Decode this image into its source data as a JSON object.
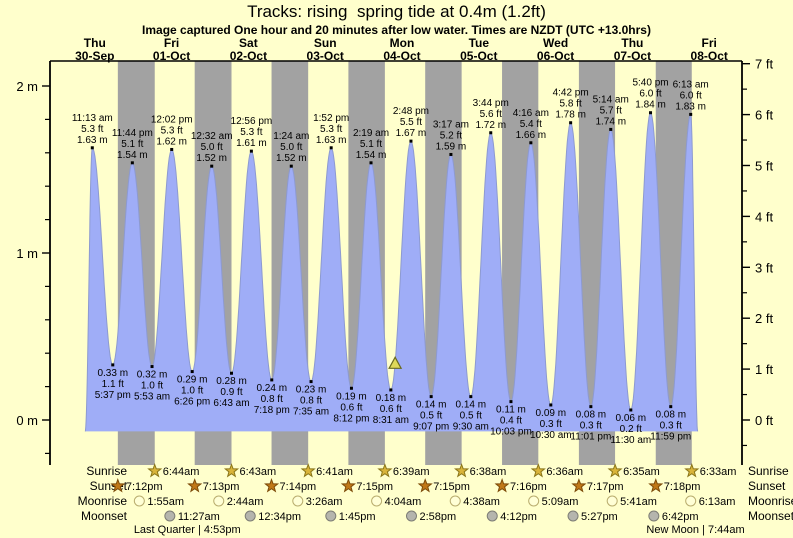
{
  "title": "Tracks: rising  spring tide at 0.4m (1.2ft)",
  "subtitle": "Image captured One hour and 20 minutes after low water. Times are NZDT (UTC +13.0hrs)",
  "row_labels": {
    "sunrise": "Sunrise",
    "sunset": "Sunset",
    "moonrise": "Moonrise",
    "moonset": "Moonset"
  },
  "colors": {
    "background": "#ffffcc",
    "night_band": "#a2a2a2",
    "tide_fill": "#9fadf7",
    "tide_edge": "#8d9ad0",
    "day_label": "#e60000",
    "text": "#000000",
    "sunrise_star": "#d9b43a",
    "sunrise_star_edge": "#8a7518",
    "sunset_star": "#c07817",
    "sunset_star_edge": "#7c4a08",
    "moonrise_circle": "#ffffd6",
    "moonrise_circle_edge": "#b9ad6e",
    "moonset_circle": "#b5b5ad",
    "moonset_circle_edge": "#7d7d75",
    "marker_fill": "#ded85a",
    "marker_edge": "#6a6a20"
  },
  "chart_data": {
    "type": "area",
    "title": "Tracks: rising  spring tide at 0.4m (1.2ft)",
    "ylabel_left_unit": "m",
    "ylabel_right_unit": "ft",
    "left_axis_ticks": [
      "0 m",
      "1 m",
      "2 m"
    ],
    "right_axis_ticks": [
      "0 ft",
      "1 ft",
      "2 ft",
      "3 ft",
      "4 ft",
      "5 ft",
      "6 ft",
      "7 ft"
    ],
    "ylim_m": [
      -0.27,
      2.17
    ],
    "grid": false,
    "legend": "none",
    "days": [
      {
        "weekday": "Thu",
        "date": "30-Sep"
      },
      {
        "weekday": "Fri",
        "date": "01-Oct"
      },
      {
        "weekday": "Sat",
        "date": "02-Oct"
      },
      {
        "weekday": "Sun",
        "date": "03-Oct"
      },
      {
        "weekday": "Mon",
        "date": "04-Oct"
      },
      {
        "weekday": "Tue",
        "date": "05-Oct"
      },
      {
        "weekday": "Wed",
        "date": "06-Oct"
      },
      {
        "weekday": "Thu",
        "date": "07-Oct"
      },
      {
        "weekday": "Fri",
        "date": "08-Oct"
      }
    ],
    "high_tides": [
      {
        "day": 0,
        "time": "11:13 am",
        "ft": "5.3 ft",
        "m": "1.63 m"
      },
      {
        "day": 0,
        "time": "11:44 pm",
        "ft": "5.1 ft",
        "m": "1.54 m"
      },
      {
        "day": 1,
        "time": "12:02 pm",
        "ft": "5.3 ft",
        "m": "1.62 m"
      },
      {
        "day": 2,
        "time": "12:32 am",
        "ft": "5.0 ft",
        "m": "1.52 m"
      },
      {
        "day": 2,
        "time": "12:56 pm",
        "ft": "5.3 ft",
        "m": "1.61 m"
      },
      {
        "day": 3,
        "time": "1:24 am",
        "ft": "5.0 ft",
        "m": "1.52 m"
      },
      {
        "day": 3,
        "time": "1:52 pm",
        "ft": "5.3 ft",
        "m": "1.63 m"
      },
      {
        "day": 4,
        "time": "2:19 am",
        "ft": "5.1 ft",
        "m": "1.54 m"
      },
      {
        "day": 4,
        "time": "2:48 pm",
        "ft": "5.5 ft",
        "m": "1.67 m"
      },
      {
        "day": 5,
        "time": "3:17 am",
        "ft": "5.2 ft",
        "m": "1.59 m"
      },
      {
        "day": 5,
        "time": "3:44 pm",
        "ft": "5.6 ft",
        "m": "1.72 m"
      },
      {
        "day": 6,
        "time": "4:16 am",
        "ft": "5.4 ft",
        "m": "1.66 m"
      },
      {
        "day": 6,
        "time": "4:42 pm",
        "ft": "5.8 ft",
        "m": "1.78 m"
      },
      {
        "day": 7,
        "time": "5:14 am",
        "ft": "5.7 ft",
        "m": "1.74 m"
      },
      {
        "day": 7,
        "time": "5:40 pm",
        "ft": "6.0 ft",
        "m": "1.84 m"
      },
      {
        "day": 8,
        "time": "6:13 am",
        "ft": "6.0 ft",
        "m": "1.83 m"
      }
    ],
    "low_tides": [
      {
        "day": 0,
        "m": "0.33 m",
        "ft": "1.1 ft",
        "time": "5:37 pm"
      },
      {
        "day": 1,
        "m": "0.32 m",
        "ft": "1.0 ft",
        "time": "5:53 am"
      },
      {
        "day": 1,
        "m": "0.29 m",
        "ft": "1.0 ft",
        "time": "6:26 pm"
      },
      {
        "day": 2,
        "m": "0.28 m",
        "ft": "0.9 ft",
        "time": "6:43 am"
      },
      {
        "day": 2,
        "m": "0.24 m",
        "ft": "0.8 ft",
        "time": "7:18 pm"
      },
      {
        "day": 3,
        "m": "0.23 m",
        "ft": "0.8 ft",
        "time": "7:35 am"
      },
      {
        "day": 3,
        "m": "0.19 m",
        "ft": "0.6 ft",
        "time": "8:12 pm"
      },
      {
        "day": 4,
        "m": "0.18 m",
        "ft": "0.6 ft",
        "time": "8:31 am"
      },
      {
        "day": 4,
        "m": "0.14 m",
        "ft": "0.5 ft",
        "time": "9:07 pm"
      },
      {
        "day": 5,
        "m": "0.14 m",
        "ft": "0.5 ft",
        "time": "9:30 am"
      },
      {
        "day": 5,
        "m": "0.11 m",
        "ft": "0.4 ft",
        "time": "10:03 pm"
      },
      {
        "day": 6,
        "m": "0.09 m",
        "ft": "0.3 ft",
        "time": "10:30 am"
      },
      {
        "day": 6,
        "m": "0.08 m",
        "ft": "0.3 ft",
        "time": "11:01 pm"
      },
      {
        "day": 7,
        "m": "0.06 m",
        "ft": "0.2 ft",
        "time": "11:30 am"
      },
      {
        "day": 7,
        "m": "0.08 m",
        "ft": "0.3 ft",
        "time": "11:59 pm"
      }
    ],
    "capture_marker": {
      "day": 4,
      "time": "9:51 am"
    },
    "sunrise": [
      {
        "day": 1,
        "time": "6:44am"
      },
      {
        "day": 2,
        "time": "6:43am"
      },
      {
        "day": 3,
        "time": "6:41am"
      },
      {
        "day": 4,
        "time": "6:39am"
      },
      {
        "day": 5,
        "time": "6:38am"
      },
      {
        "day": 6,
        "time": "6:36am"
      },
      {
        "day": 7,
        "time": "6:35am"
      },
      {
        "day": 8,
        "time": "6:33am"
      }
    ],
    "sunset": [
      {
        "day": 0,
        "time": "7:12pm"
      },
      {
        "day": 1,
        "time": "7:13pm"
      },
      {
        "day": 2,
        "time": "7:14pm"
      },
      {
        "day": 3,
        "time": "7:15pm"
      },
      {
        "day": 4,
        "time": "7:15pm"
      },
      {
        "day": 5,
        "time": "7:16pm"
      },
      {
        "day": 6,
        "time": "7:17pm"
      },
      {
        "day": 7,
        "time": "7:18pm"
      }
    ],
    "moonrise": [
      {
        "day": 1,
        "time": "1:55am"
      },
      {
        "day": 2,
        "time": "2:44am"
      },
      {
        "day": 3,
        "time": "3:26am"
      },
      {
        "day": 4,
        "time": "4:04am"
      },
      {
        "day": 5,
        "time": "4:38am"
      },
      {
        "day": 6,
        "time": "5:09am"
      },
      {
        "day": 7,
        "time": "5:41am"
      },
      {
        "day": 8,
        "time": "6:13am"
      }
    ],
    "moonset": [
      {
        "day": 1,
        "time": "11:27am"
      },
      {
        "day": 2,
        "time": "12:34pm"
      },
      {
        "day": 3,
        "time": "1:45pm"
      },
      {
        "day": 4,
        "time": "2:58pm"
      },
      {
        "day": 5,
        "time": "4:12pm"
      },
      {
        "day": 6,
        "time": "5:27pm"
      },
      {
        "day": 7,
        "time": "6:42pm"
      }
    ],
    "moon_phases": [
      {
        "day": 1,
        "time": "4:53pm",
        "label": "Last Quarter | 4:53pm"
      },
      {
        "day": 8,
        "time": "7:44am",
        "label": "New Moon | 7:44am"
      }
    ]
  }
}
